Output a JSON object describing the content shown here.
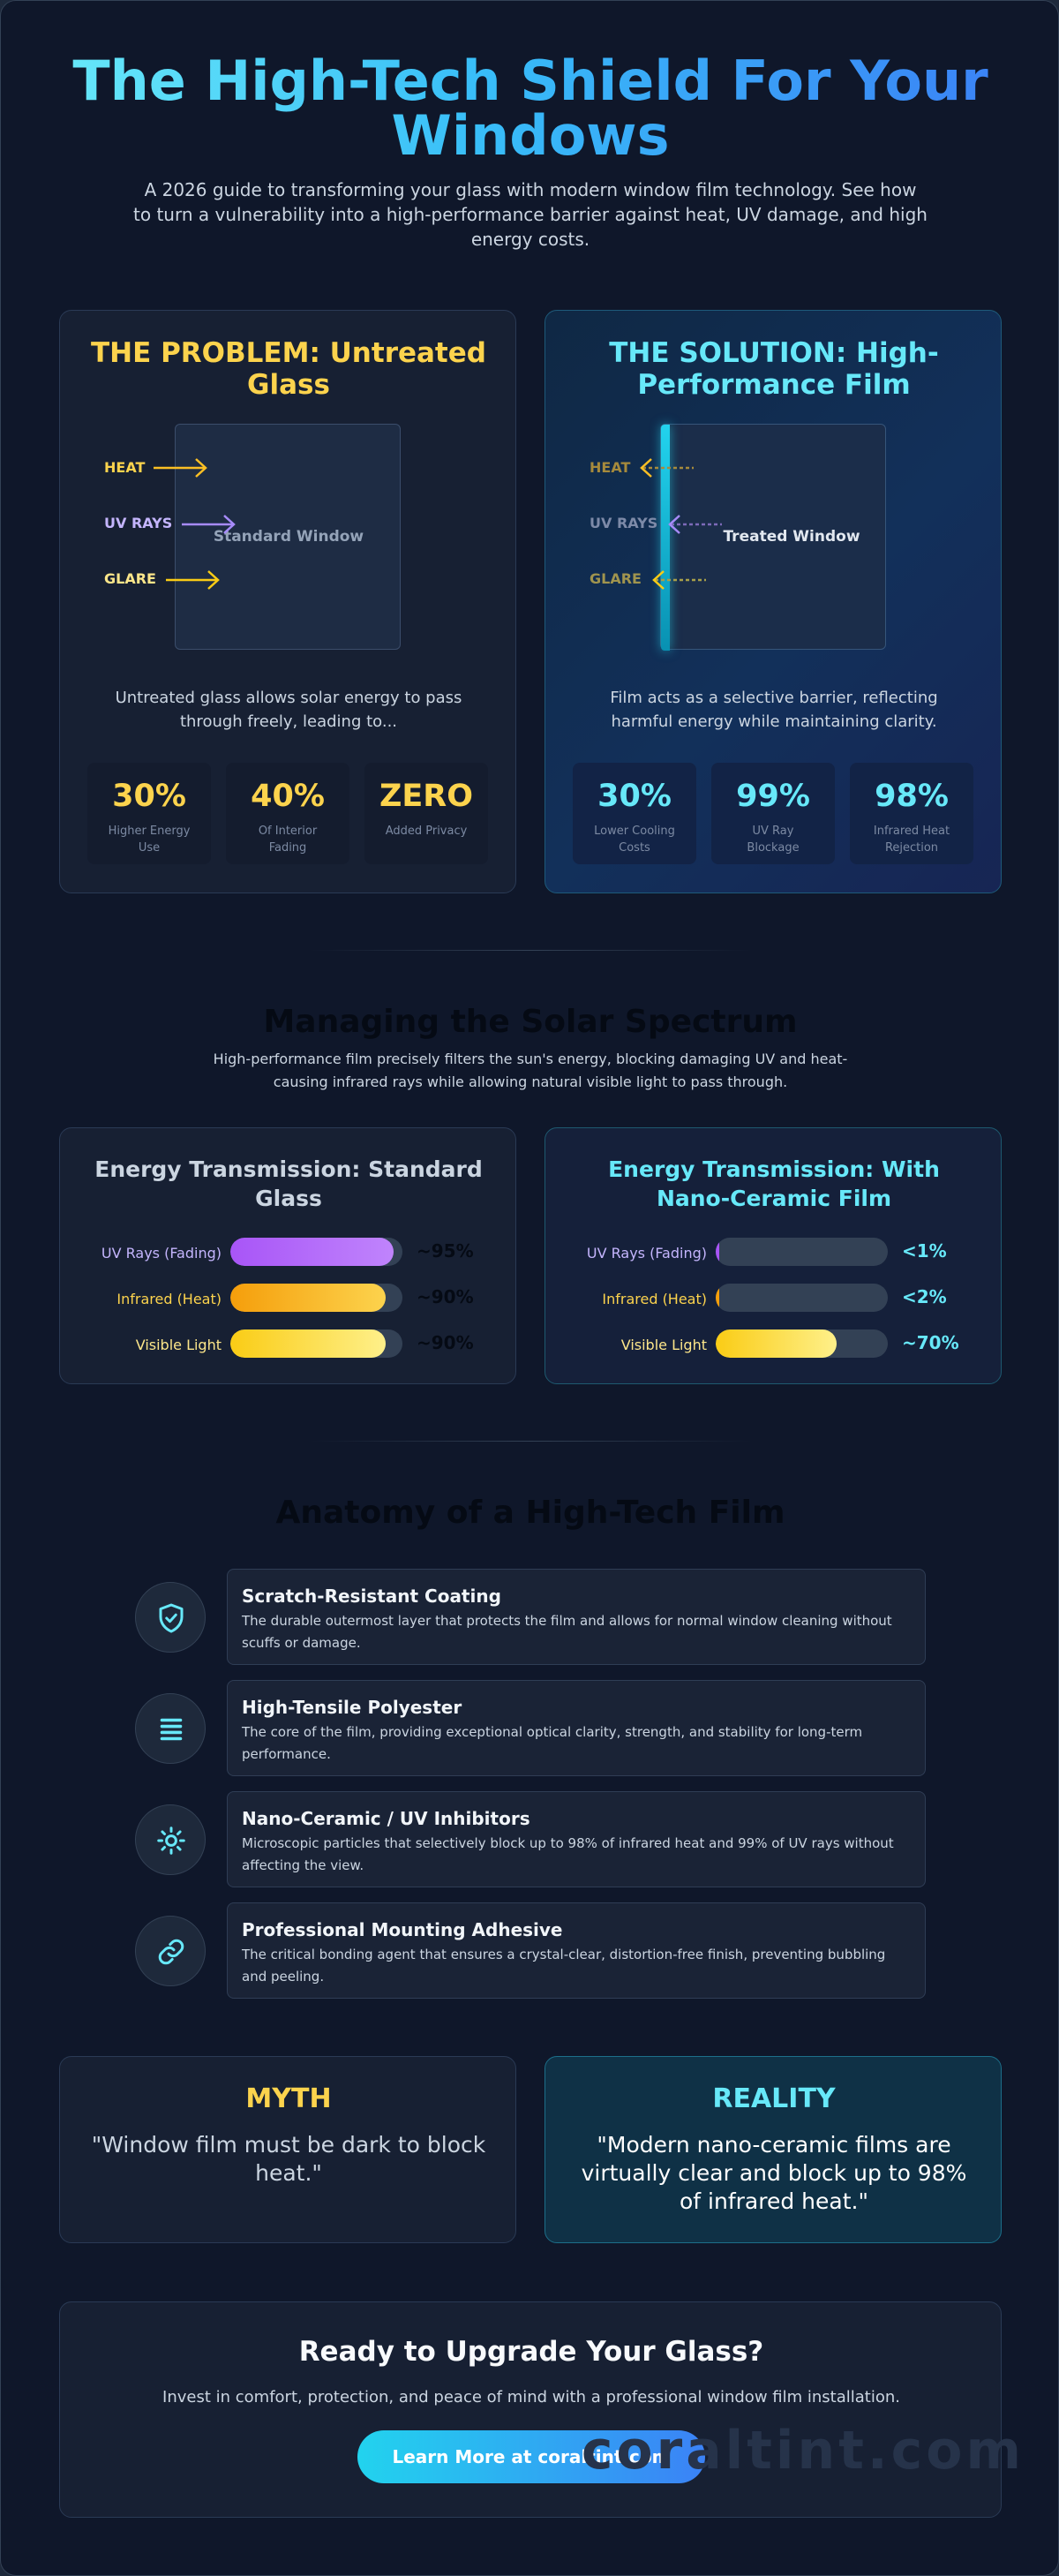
{
  "header": {
    "title": "The High-Tech Shield For Your Windows",
    "subtitle": "A 2026 guide to transforming your glass with modern window film technology. See how to turn a vulnerability into a high-performance barrier against heat, UV damage, and high energy costs."
  },
  "problem": {
    "title": "THE PROBLEM: Untreated Glass",
    "window_label": "Standard Window",
    "rays": [
      "HEAT",
      "UV RAYS",
      "GLARE"
    ],
    "description": "Untreated glass allows solar energy to pass through freely, leading to...",
    "stats": [
      {
        "value": "30%",
        "label": "Higher Energy Use"
      },
      {
        "value": "40%",
        "label": "Of Interior Fading"
      },
      {
        "value": "ZERO",
        "label": "Added Privacy"
      }
    ]
  },
  "solution": {
    "title": "THE SOLUTION: High-Performance Film",
    "window_label": "Treated Window",
    "rays": [
      "HEAT",
      "UV RAYS",
      "GLARE"
    ],
    "description": "Film acts as a selective barrier, reflecting harmful energy while maintaining clarity.",
    "stats": [
      {
        "value": "30%",
        "label": "Lower Cooling Costs"
      },
      {
        "value": "99%",
        "label": "UV Ray Blockage"
      },
      {
        "value": "98%",
        "label": "Infrared Heat Rejection"
      }
    ]
  },
  "spectrum": {
    "title": "Managing the Solar Spectrum",
    "subtitle": "High-performance film precisely filters the sun's energy, blocking damaging UV and heat-causing infrared rays while allowing natural visible light to pass through.",
    "standard": {
      "title": "Energy Transmission: Standard Glass",
      "rows": [
        {
          "label": "UV Rays (Fading)",
          "value": "~95%",
          "fraction": 0.95
        },
        {
          "label": "Infrared (Heat)",
          "value": "~90%",
          "fraction": 0.9
        },
        {
          "label": "Visible Light",
          "value": "~90%",
          "fraction": 0.9
        }
      ]
    },
    "film": {
      "title": "Energy Transmission: With Nano-Ceramic Film",
      "rows": [
        {
          "label": "UV Rays (Fading)",
          "value": "<1%",
          "fraction": 0.01
        },
        {
          "label": "Infrared (Heat)",
          "value": "<2%",
          "fraction": 0.02
        },
        {
          "label": "Visible Light",
          "value": "~70%",
          "fraction": 0.7
        }
      ]
    }
  },
  "anatomy": {
    "title": "Anatomy of a High-Tech Film",
    "layers": [
      {
        "icon": "shield-check-icon",
        "name": "Scratch-Resistant Coating",
        "desc": "The durable outermost layer that protects the film and allows for normal window cleaning without scuffs or damage."
      },
      {
        "icon": "layers-icon",
        "name": "High-Tensile Polyester",
        "desc": "The core of the film, providing exceptional optical clarity, strength, and stability for long-term performance."
      },
      {
        "icon": "sun-icon",
        "name": "Nano-Ceramic / UV Inhibitors",
        "desc": "Microscopic particles that selectively block up to 98% of infrared heat and 99% of UV rays without affecting the view."
      },
      {
        "icon": "link-icon",
        "name": "Professional Mounting Adhesive",
        "desc": "The critical bonding agent that ensures a crystal-clear, distortion-free finish, preventing bubbling and peeling."
      }
    ]
  },
  "myth": {
    "heading": "MYTH",
    "text": "\"Window film must be dark to block heat.\""
  },
  "reality": {
    "heading": "REALITY",
    "text": "\"Modern nano-ceramic films are virtually clear and block up to 98% of infrared heat.\""
  },
  "cta": {
    "title": "Ready to Upgrade Your Glass?",
    "subtitle": "Invest in comfort, protection, and peace of mind with a professional window film installation.",
    "button_label": "Learn More at coraltint.com"
  },
  "watermark": "coraltint.com",
  "colors": {
    "background": "#0f172a",
    "accent_yellow": "#fcd34d",
    "accent_cyan": "#67e8f9",
    "accent_blue": "#3b82f6",
    "uv_purple": "#a855f7",
    "infrared_orange": "#f59e0b",
    "visible_yellow": "#fde047"
  }
}
